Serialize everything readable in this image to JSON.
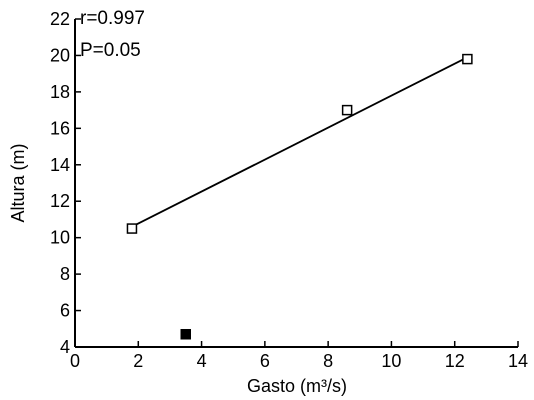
{
  "chart_data": {
    "type": "scatter",
    "xlabel": "Gasto (m³/s)",
    "ylabel": "Altura (m)",
    "xlim": [
      0,
      14
    ],
    "ylim": [
      4,
      22
    ],
    "xticks": [
      0,
      2,
      4,
      6,
      8,
      10,
      12,
      14
    ],
    "yticks": [
      4,
      6,
      8,
      10,
      12,
      14,
      16,
      18,
      20,
      22
    ],
    "grid": false,
    "annotations": [
      "r=0.997",
      "P=0.05"
    ],
    "series": [
      {
        "marker": "open-square",
        "points": [
          {
            "x": 1.8,
            "y": 10.5
          },
          {
            "x": 8.6,
            "y": 17.0
          },
          {
            "x": 12.4,
            "y": 19.8
          }
        ]
      },
      {
        "marker": "filled-square",
        "points": [
          {
            "x": 3.5,
            "y": 4.7
          }
        ]
      }
    ],
    "fit_line": {
      "x1": 1.8,
      "y1": 10.6,
      "x2": 12.4,
      "y2": 19.9
    }
  }
}
